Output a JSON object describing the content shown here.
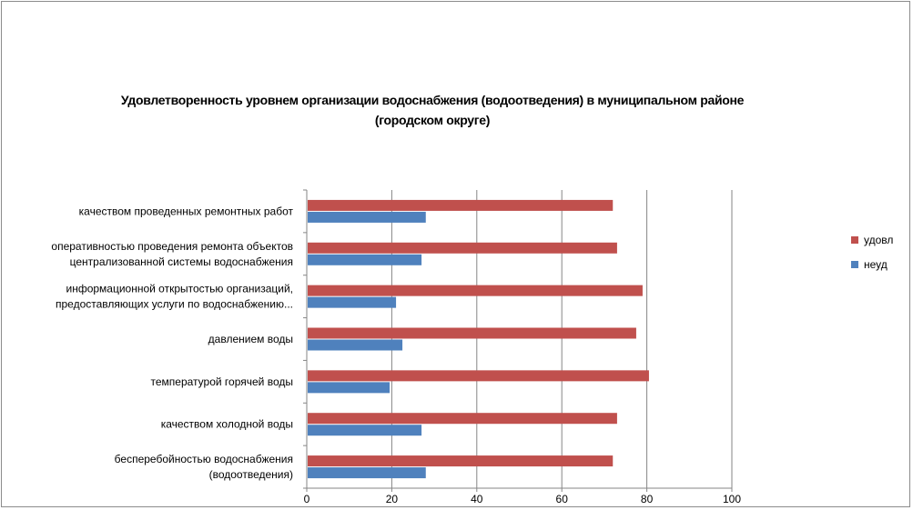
{
  "chart_data": {
    "type": "bar",
    "orientation": "horizontal",
    "title": "Удовлетворенность уровнем организации водоснабжения (водоотведения) в муниципальном районе (городском округе)",
    "title_lines": [
      "Удовлетворенность уровнем организации водоснабжения (водоотведения) в муниципальном районе",
      "(городском округе)"
    ],
    "categories": [
      "качеством проведенных ремонтных работ",
      "оперативностью проведения ремонта объектов централизованной системы водоснабжения",
      "информационной открытостью организаций, предоставляющих услуги по водоснабжению...",
      "давлением воды",
      "температурой горячей воды",
      "качеством холодной воды",
      "бесперебойностью водоснабжения (водоотведения)"
    ],
    "category_lines": [
      [
        "качеством  проведенных  ремонтных работ"
      ],
      [
        "оперативностью  проведения  ремонта объектов",
        "централизованной системы водоснабжения"
      ],
      [
        "информационной открытостью организаций,",
        "предоставляющих услуги по водоснабжению..."
      ],
      [
        "давлением  воды"
      ],
      [
        "температурой  горячей воды"
      ],
      [
        "качеством  холодной воды"
      ],
      [
        "бесперебойностью  водоснабжения",
        "(водоотведения)"
      ]
    ],
    "series": [
      {
        "name": "удовл",
        "color": "#c0504d",
        "values": [
          72,
          73,
          79,
          77.5,
          80.5,
          73,
          72
        ]
      },
      {
        "name": "неуд",
        "color": "#4f81bd",
        "values": [
          28,
          27,
          21,
          22.5,
          19.5,
          27,
          28
        ]
      }
    ],
    "xlim": [
      0,
      100
    ],
    "xticks": [
      "0",
      "20",
      "40",
      "60",
      "80",
      "100"
    ],
    "grid": true,
    "legend_position": "right"
  }
}
